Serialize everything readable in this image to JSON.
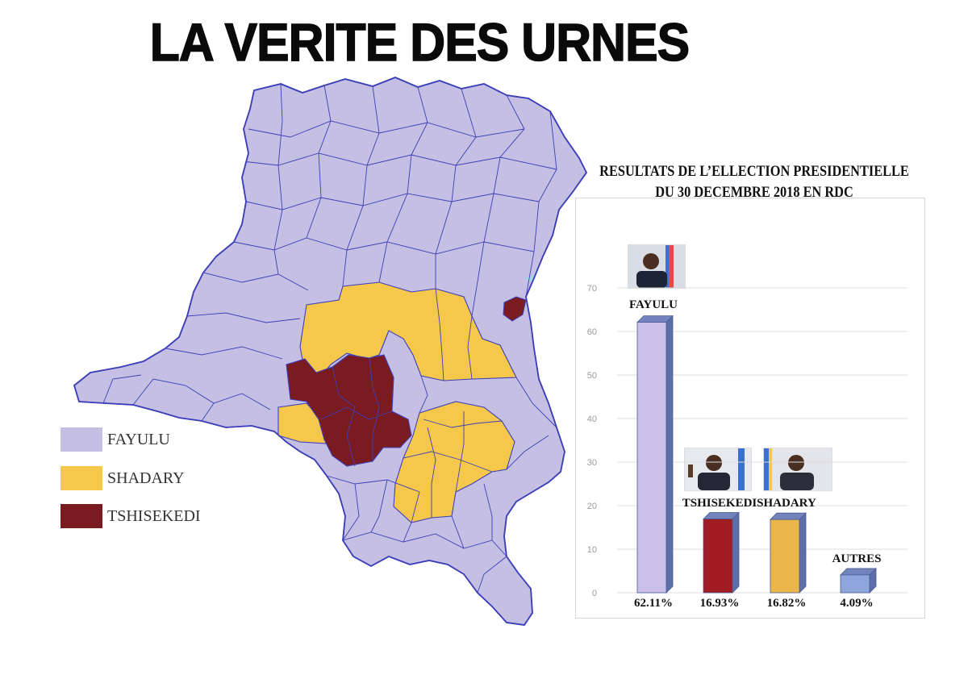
{
  "title": "LA VERITE DES URNES",
  "colors": {
    "fayulu": "#c4bfe3",
    "shadary": "#f5c84c",
    "tshisekedi": "#7a1b22",
    "border": "#3d3fb8",
    "lake": "#9fd6e8"
  },
  "legend": [
    {
      "label": "FAYULU",
      "color": "#c4bfe3"
    },
    {
      "label": "SHADARY",
      "color": "#f5c84c"
    },
    {
      "label": "TSHISEKEDI",
      "color": "#7a1b22"
    }
  ],
  "chart_data": {
    "type": "bar",
    "title": "RESULTATS DE L’ELLECTION PRESIDENTIELLE",
    "subtitle": "DU 30 DECEMBRE 2018 EN RDC",
    "categories": [
      "FAYULU",
      "TSHISEKEDI",
      "SHADARY",
      "AUTRES"
    ],
    "values": [
      62.11,
      16.93,
      16.82,
      4.09
    ],
    "value_labels": [
      "62.11%",
      "16.93%",
      "16.82%",
      "4.09%"
    ],
    "colors": [
      "#c9bfe8",
      "#a11c22",
      "#eab64a",
      "#8ea6dc"
    ],
    "ylim": [
      0,
      70
    ],
    "yticks": [
      0,
      10,
      20,
      30,
      40,
      50,
      60,
      70
    ],
    "grid": true,
    "xlabel": "",
    "ylabel": ""
  }
}
